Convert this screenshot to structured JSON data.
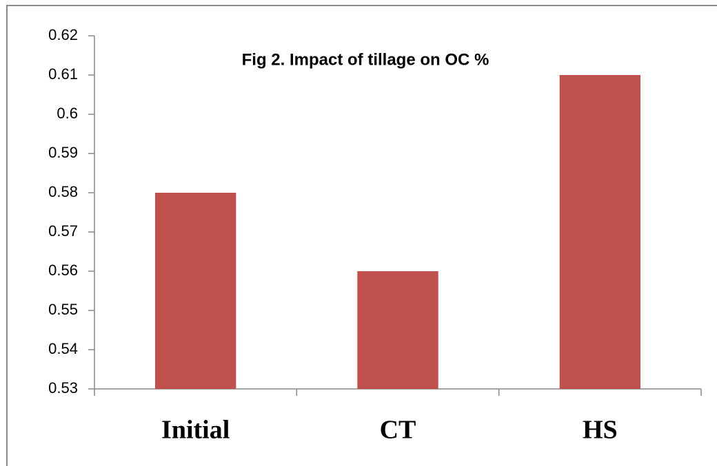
{
  "chart_data": {
    "type": "bar",
    "title": "Fig 2. Impact of tillage on OC %",
    "categories": [
      "Initial",
      "CT",
      "HS"
    ],
    "values": [
      0.58,
      0.56,
      0.61
    ],
    "color": "#c0504d",
    "ylim": [
      0.53,
      0.62
    ],
    "yticks": [
      0.53,
      0.54,
      0.55,
      0.56,
      0.57,
      0.58,
      0.59,
      0.6,
      0.61,
      0.62
    ],
    "grid": false
  }
}
